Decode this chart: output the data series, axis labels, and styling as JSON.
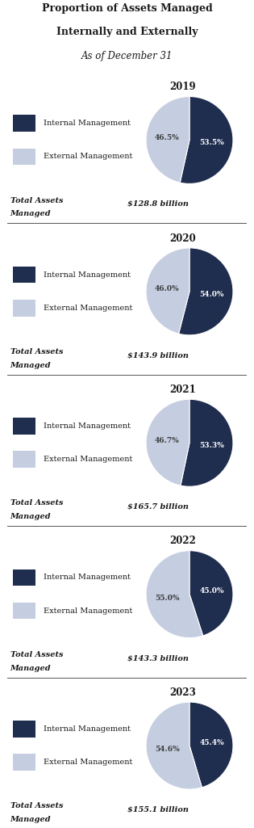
{
  "title_line1": "Proportion of Assets Managed",
  "title_line2": "Internally and Externally",
  "title_line3": "As of December 31",
  "years": [
    "2019",
    "2020",
    "2021",
    "2022",
    "2023"
  ],
  "internal_pct": [
    53.5,
    54.0,
    53.3,
    45.0,
    45.4
  ],
  "external_pct": [
    46.5,
    46.0,
    46.7,
    55.0,
    54.6
  ],
  "total_assets": [
    "$128.8 billion",
    "$143.9 billion",
    "$165.7 billion",
    "$143.3 billion",
    "$155.1 billion"
  ],
  "color_internal": "#1f2d4e",
  "color_external": "#c5cde0",
  "bg_color": "#ffffff",
  "label_internal": "Internal Management",
  "label_external": "External Management",
  "label_total_line1": "Total Assets",
  "label_total_line2": "Managed"
}
